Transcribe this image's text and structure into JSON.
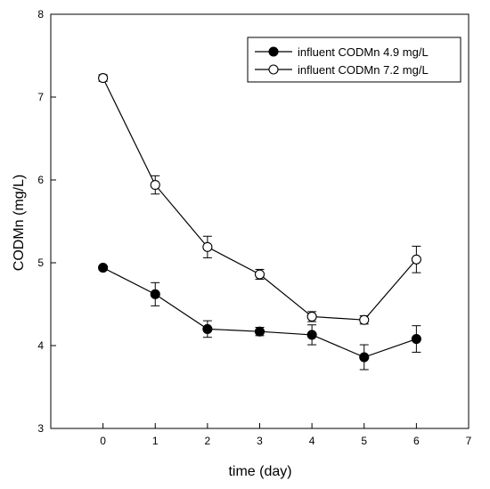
{
  "chart_data": {
    "type": "line",
    "xlabel": "time (day)",
    "ylabel": "CODMn (mg/L)",
    "xlim": [
      -1,
      7
    ],
    "ylim": [
      3,
      8
    ],
    "xticks": [
      0,
      1,
      2,
      3,
      4,
      5,
      6,
      7
    ],
    "yticks": [
      3,
      4,
      5,
      6,
      7,
      8
    ],
    "grid": false,
    "legend_position": "top-right",
    "series": [
      {
        "name": "influent CODMn 4.9 mg/L",
        "marker": "filled-circle",
        "x": [
          0,
          1,
          2,
          3,
          4,
          5,
          6
        ],
        "y": [
          4.94,
          4.62,
          4.2,
          4.17,
          4.13,
          3.86,
          4.08
        ],
        "error": [
          0.02,
          0.14,
          0.1,
          0.05,
          0.12,
          0.15,
          0.16
        ]
      },
      {
        "name": "influent CODMn 7.2 mg/L",
        "marker": "open-circle",
        "x": [
          0,
          1,
          2,
          3,
          4,
          5,
          6
        ],
        "y": [
          7.23,
          5.94,
          5.19,
          4.86,
          4.35,
          4.31,
          5.04
        ],
        "error": [
          0.04,
          0.11,
          0.13,
          0.06,
          0.06,
          0.05,
          0.16
        ]
      }
    ]
  }
}
